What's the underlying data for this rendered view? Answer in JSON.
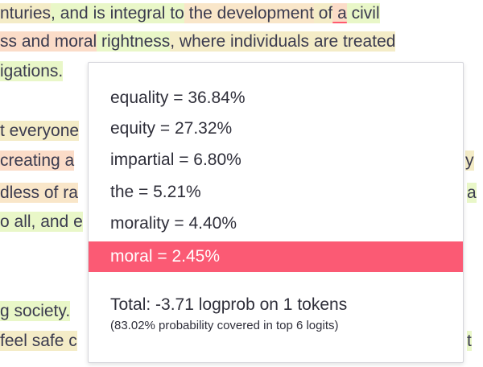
{
  "background_lines": [
    [
      "nturies",
      ", and is integral",
      " to",
      " the development",
      " of",
      " a",
      " civil"
    ],
    [
      "ss and moral",
      " rightness",
      ", where individuals are treated"
    ],
    [
      "igations."
    ],
    [
      "t everyone"
    ],
    [
      "creating a"
    ],
    [
      "dless of ra"
    ],
    [
      "o all, and e"
    ],
    [
      "g society."
    ],
    [
      "feel safe c"
    ]
  ],
  "background_right_fragments": [
    "y",
    "a",
    "t"
  ],
  "popup": {
    "options": [
      {
        "label": "equality = 36.84%",
        "selected": false
      },
      {
        "label": "equity = 27.32%",
        "selected": false
      },
      {
        "label": "impartial = 6.80%",
        "selected": false
      },
      {
        "label": "the = 5.21%",
        "selected": false
      },
      {
        "label": "morality = 4.40%",
        "selected": false
      },
      {
        "label": "moral = 2.45%",
        "selected": true
      }
    ],
    "total": "Total: -3.71 logprob on 1 tokens",
    "coverage": "(83.02% probability covered in top 6 logits)"
  },
  "colors": {
    "selected_bg": "#fb5a74",
    "highlight_green": "#e9f7c8",
    "highlight_orange": "#fbdcc8"
  }
}
